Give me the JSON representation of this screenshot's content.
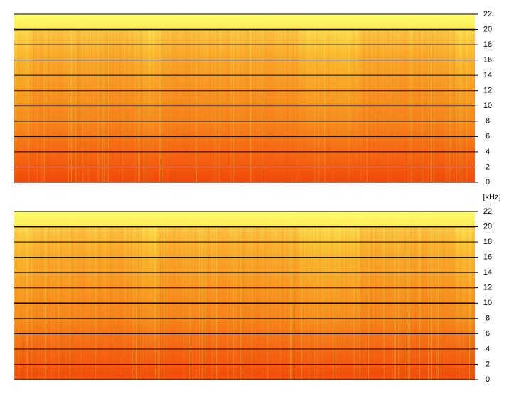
{
  "chart_data": [
    {
      "type": "spectrogram",
      "ylim": [
        0,
        22
      ],
      "yticks": [
        0,
        2,
        4,
        6,
        8,
        10,
        12,
        14,
        16,
        18,
        20,
        22
      ],
      "grid": true,
      "colors": [
        "#f24a0c",
        "#f7931f",
        "#fbc431",
        "#ffff6a"
      ]
    },
    {
      "type": "spectrogram",
      "ylabel": "[kHz]",
      "ylim": [
        0,
        22
      ],
      "yticks": [
        0,
        2,
        4,
        6,
        8,
        10,
        12,
        14,
        16,
        18,
        20,
        22
      ],
      "grid": true,
      "colors": [
        "#f24a0c",
        "#f7931f",
        "#fbc431",
        "#ffff6a"
      ]
    }
  ]
}
